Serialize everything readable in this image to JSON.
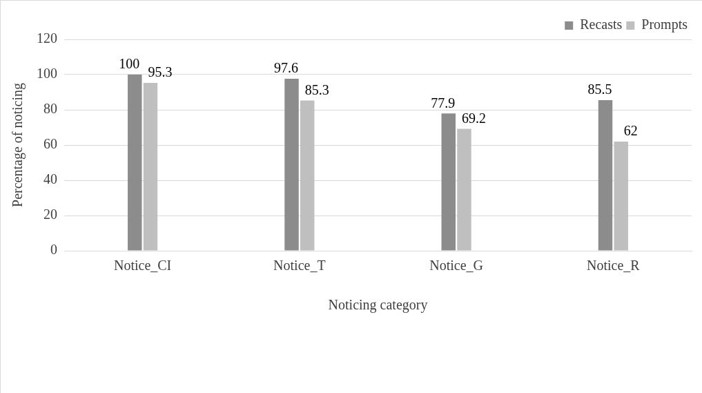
{
  "chart_data": {
    "type": "bar",
    "xlabel": "Noticing category",
    "ylabel": "Percentage of noticing",
    "categories": [
      "Notice_CI",
      "Notice_T",
      "Notice_G",
      "Notice_R"
    ],
    "series": [
      {
        "name": "Recasts",
        "color": "#8c8c8c",
        "values": [
          100,
          97.6,
          77.9,
          85.5
        ]
      },
      {
        "name": "Prompts",
        "color": "#bfbfbf",
        "values": [
          95.3,
          85.3,
          69.2,
          62
        ]
      }
    ],
    "ylim": [
      0,
      120
    ],
    "yticks": [
      0,
      20,
      40,
      60,
      80,
      100,
      120
    ],
    "grid": "y",
    "legend": "top right",
    "data_labels": true
  }
}
